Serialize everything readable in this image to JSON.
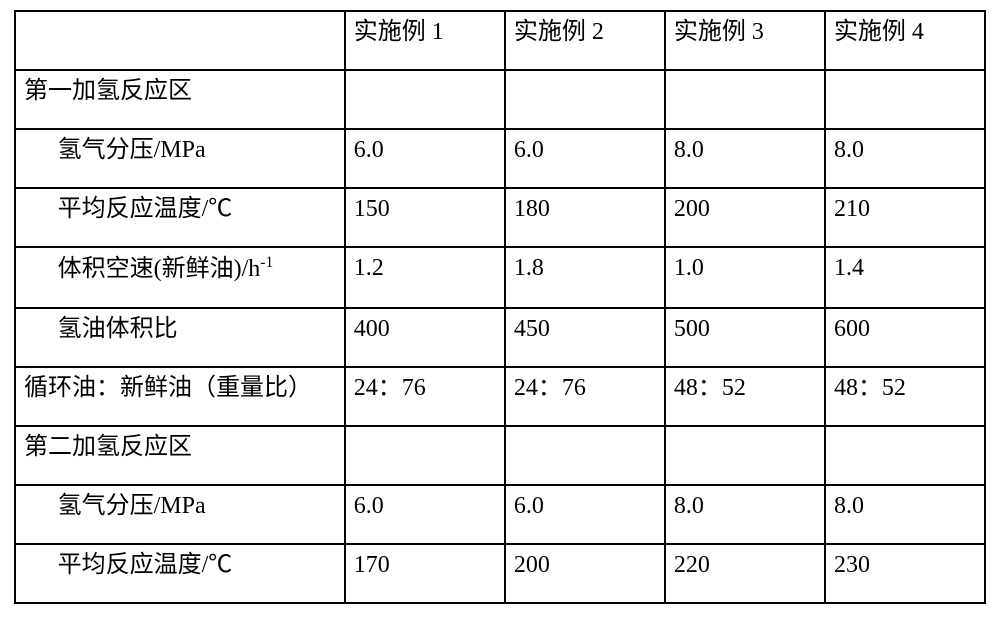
{
  "table": {
    "border_color": "#000000",
    "background_color": "#ffffff",
    "text_color": "#000000",
    "font_family": "SimSun",
    "font_size_pt": 18,
    "col_widths_pct": [
      34,
      16.5,
      16.5,
      16.5,
      16.5
    ],
    "indent_em": 1.4,
    "columns": [
      "",
      "实施例 1",
      "实施例 2",
      "实施例 3",
      "实施例 4"
    ],
    "rows": [
      {
        "label": "第一加氢反应区",
        "indent": false,
        "values": [
          "",
          "",
          "",
          ""
        ]
      },
      {
        "label": "氢气分压/MPa",
        "indent": true,
        "values": [
          "6.0",
          "6.0",
          "8.0",
          "8.0"
        ]
      },
      {
        "label": "平均反应温度/℃",
        "indent": true,
        "values": [
          "150",
          "180",
          "200",
          "210"
        ]
      },
      {
        "label_html": "体积空速(新鲜油)/h<span class=\"sup\">-1</span>",
        "label": "体积空速(新鲜油)/h-1",
        "indent": true,
        "values": [
          "1.2",
          "1.8",
          "1.0",
          "1.4"
        ]
      },
      {
        "label": "氢油体积比",
        "indent": true,
        "values": [
          "400",
          "450",
          "500",
          "600"
        ]
      },
      {
        "label": "循环油：新鲜油（重量比）",
        "indent": false,
        "values": [
          "24：76",
          "24：76",
          "48：52",
          "48：52"
        ]
      },
      {
        "label": "第二加氢反应区",
        "indent": false,
        "values": [
          "",
          "",
          "",
          ""
        ]
      },
      {
        "label": "氢气分压/MPa",
        "indent": true,
        "values": [
          "6.0",
          "6.0",
          "8.0",
          "8.0"
        ]
      },
      {
        "label": "平均反应温度/℃",
        "indent": true,
        "values": [
          "170",
          "200",
          "220",
          "230"
        ]
      }
    ]
  }
}
